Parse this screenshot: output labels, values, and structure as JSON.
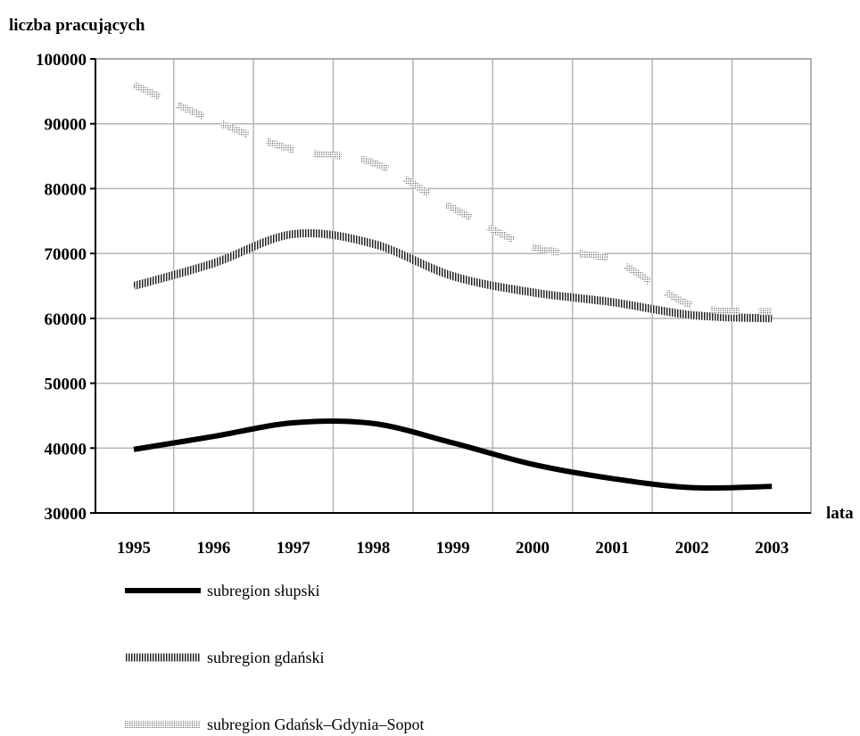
{
  "chart_data": {
    "type": "line",
    "ylabel": "liczba pracujących",
    "xlabel": "lata",
    "x": [
      1995,
      1996,
      1997,
      1998,
      1999,
      2000,
      2001,
      2002,
      2003
    ],
    "ylim": [
      30000,
      100000
    ],
    "yticks": [
      30000,
      40000,
      50000,
      60000,
      70000,
      80000,
      90000,
      100000
    ],
    "ytick_labels": [
      "30000",
      "40000",
      "50000",
      "60000",
      "70000",
      "80000",
      "90000",
      "100000"
    ],
    "xtick_labels": [
      "1995",
      "1996",
      "1997",
      "1998",
      "1999",
      "2000",
      "2001",
      "2002",
      "2003"
    ],
    "grid": true,
    "legend_position": "bottom",
    "series": [
      {
        "name": "subregion słupski",
        "style": "solid",
        "color": "#000000",
        "values": [
          39800,
          41800,
          43900,
          43800,
          40800,
          37500,
          35300,
          33900,
          34100
        ]
      },
      {
        "name": "subregion gdański",
        "style": "hatched",
        "color": "#555555",
        "values": [
          65000,
          68500,
          73000,
          71500,
          66500,
          64000,
          62500,
          60500,
          60000
        ]
      },
      {
        "name": "subregion Gdańsk–Gdynia–Sopot",
        "style": "dotted",
        "color": "#999999",
        "values": [
          96000,
          90500,
          86000,
          84000,
          77000,
          71000,
          69000,
          62000,
          61000
        ]
      }
    ]
  }
}
